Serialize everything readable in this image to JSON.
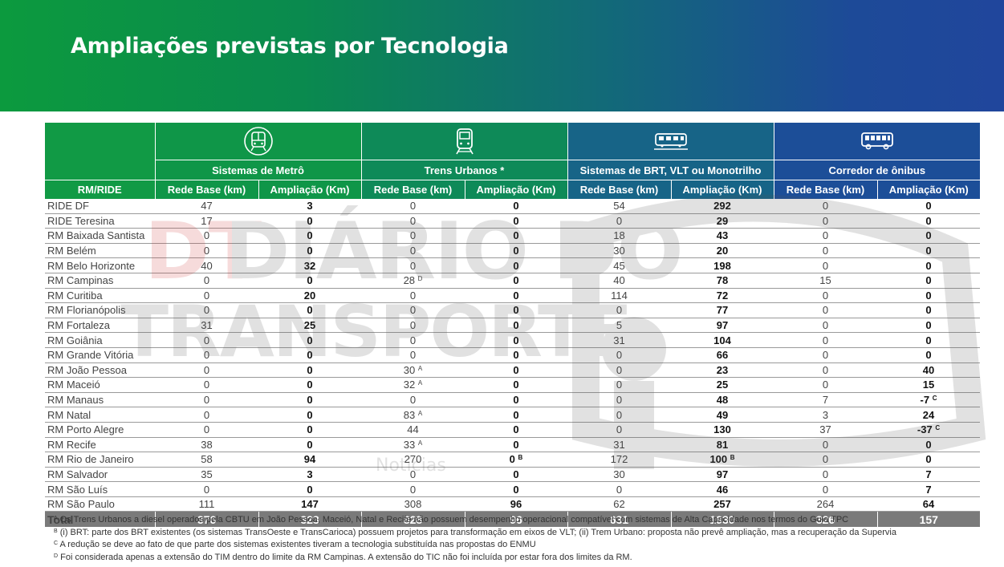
{
  "title": "Ampliações previstas por Tecnologia",
  "watermark": {
    "line1": "DIÁRIO DO",
    "line2": "TRANSPORTE",
    "logo": "DT",
    "sub": "Notícias"
  },
  "header": {
    "corner_label": "RM/RIDE",
    "groups": [
      {
        "label": "Sistemas de Metrô",
        "icon": "metro-icon"
      },
      {
        "label": "Trens Urbanos *",
        "icon": "train-icon"
      },
      {
        "label": "Sistemas de BRT, VLT ou Monotrilho",
        "icon": "brt-icon"
      },
      {
        "label": "Corredor de ônibus",
        "icon": "bus-icon"
      }
    ],
    "col_base": "Rede Base (km)",
    "col_amp": "Ampliação (Km)"
  },
  "rows": [
    {
      "name": "RIDE DF",
      "v": [
        "47",
        "3",
        "0",
        "0",
        "54",
        "292",
        "0",
        "0"
      ]
    },
    {
      "name": "RIDE Teresina",
      "v": [
        "17",
        "0",
        "0",
        "0",
        "0",
        "29",
        "0",
        "0"
      ]
    },
    {
      "name": "RM Baixada Santista",
      "v": [
        "0",
        "0",
        "0",
        "0",
        "18",
        "43",
        "0",
        "0"
      ]
    },
    {
      "name": "RM Belém",
      "v": [
        "0",
        "0",
        "0",
        "0",
        "30",
        "20",
        "0",
        "0"
      ]
    },
    {
      "name": "RM Belo Horizonte",
      "v": [
        "40",
        "32",
        "0",
        "0",
        "45",
        "198",
        "0",
        "0"
      ]
    },
    {
      "name": "RM Campinas",
      "v": [
        "0",
        "0",
        "28",
        "0",
        "40",
        "78",
        "15",
        "0"
      ],
      "sup": {
        "2": "D"
      }
    },
    {
      "name": "RM Curitiba",
      "v": [
        "0",
        "20",
        "0",
        "0",
        "114",
        "72",
        "0",
        "0"
      ]
    },
    {
      "name": "RM Florianópolis",
      "v": [
        "0",
        "0",
        "0",
        "0",
        "0",
        "77",
        "0",
        "0"
      ]
    },
    {
      "name": "RM Fortaleza",
      "v": [
        "31",
        "25",
        "0",
        "0",
        "5",
        "97",
        "0",
        "0"
      ]
    },
    {
      "name": "RM Goiânia",
      "v": [
        "0",
        "0",
        "0",
        "0",
        "31",
        "104",
        "0",
        "0"
      ]
    },
    {
      "name": "RM Grande Vitória",
      "v": [
        "0",
        "0",
        "0",
        "0",
        "0",
        "66",
        "0",
        "0"
      ]
    },
    {
      "name": "RM João Pessoa",
      "v": [
        "0",
        "0",
        "30",
        "0",
        "0",
        "23",
        "0",
        "40"
      ],
      "sup": {
        "2": "A"
      }
    },
    {
      "name": "RM Maceió",
      "v": [
        "0",
        "0",
        "32",
        "0",
        "0",
        "25",
        "0",
        "15"
      ],
      "sup": {
        "2": "A"
      }
    },
    {
      "name": "RM Manaus",
      "v": [
        "0",
        "0",
        "0",
        "0",
        "0",
        "48",
        "7",
        "-7"
      ],
      "sup": {
        "7": "C"
      }
    },
    {
      "name": "RM Natal",
      "v": [
        "0",
        "0",
        "83",
        "0",
        "0",
        "49",
        "3",
        "24"
      ],
      "sup": {
        "2": "A"
      }
    },
    {
      "name": "RM Porto Alegre",
      "v": [
        "0",
        "0",
        "44",
        "0",
        "0",
        "130",
        "37",
        "-37"
      ],
      "sup": {
        "7": "C"
      }
    },
    {
      "name": "RM Recife",
      "v": [
        "38",
        "0",
        "33",
        "0",
        "31",
        "81",
        "0",
        "0"
      ],
      "sup": {
        "2": "A"
      }
    },
    {
      "name": "RM Rio de Janeiro",
      "v": [
        "58",
        "94",
        "270",
        "0",
        "172",
        "100",
        "0",
        "0"
      ],
      "sup": {
        "3": "B",
        "5": "B"
      }
    },
    {
      "name": "RM Salvador",
      "v": [
        "35",
        "3",
        "0",
        "0",
        "30",
        "97",
        "0",
        "7"
      ]
    },
    {
      "name": "RM São Luís",
      "v": [
        "0",
        "0",
        "0",
        "0",
        "0",
        "46",
        "0",
        "7"
      ]
    },
    {
      "name": "RM São Paulo",
      "v": [
        "111",
        "147",
        "308",
        "96",
        "62",
        "257",
        "264",
        "64"
      ]
    }
  ],
  "total": {
    "name": "Total",
    "v": [
      "376",
      "323",
      "828",
      "96",
      "631",
      "1930",
      "326",
      "157"
    ]
  },
  "notes": [
    {
      "mark": "A",
      "text": "Os Trens Urbanos a diesel operados pela CBTU em João Pessoa, Maceió, Natal e Recife não possuem desempenho operacional compatível com sistemas de Alta Capacidade nos termos do Guia TPC"
    },
    {
      "mark": "B",
      "text": "(i) BRT: parte dos BRT existentes (os sistemas TransOeste e TransCarioca) possuem projetos para transformação em eixos de VLT; (ii) Trem Urbano: proposta não prevê ampliação, mas a recuperação da Supervia"
    },
    {
      "mark": "C",
      "text": "A redução se deve ao fato de que parte dos sistemas existentes tiveram a tecnologia substituída nas propostas do ENMU"
    },
    {
      "mark": "D",
      "text": "Foi considerada apenas a extensão do TIM dentro do limite da RM Campinas. A extensão do TIC não foi incluída por estar fora dos limites da RM."
    }
  ]
}
